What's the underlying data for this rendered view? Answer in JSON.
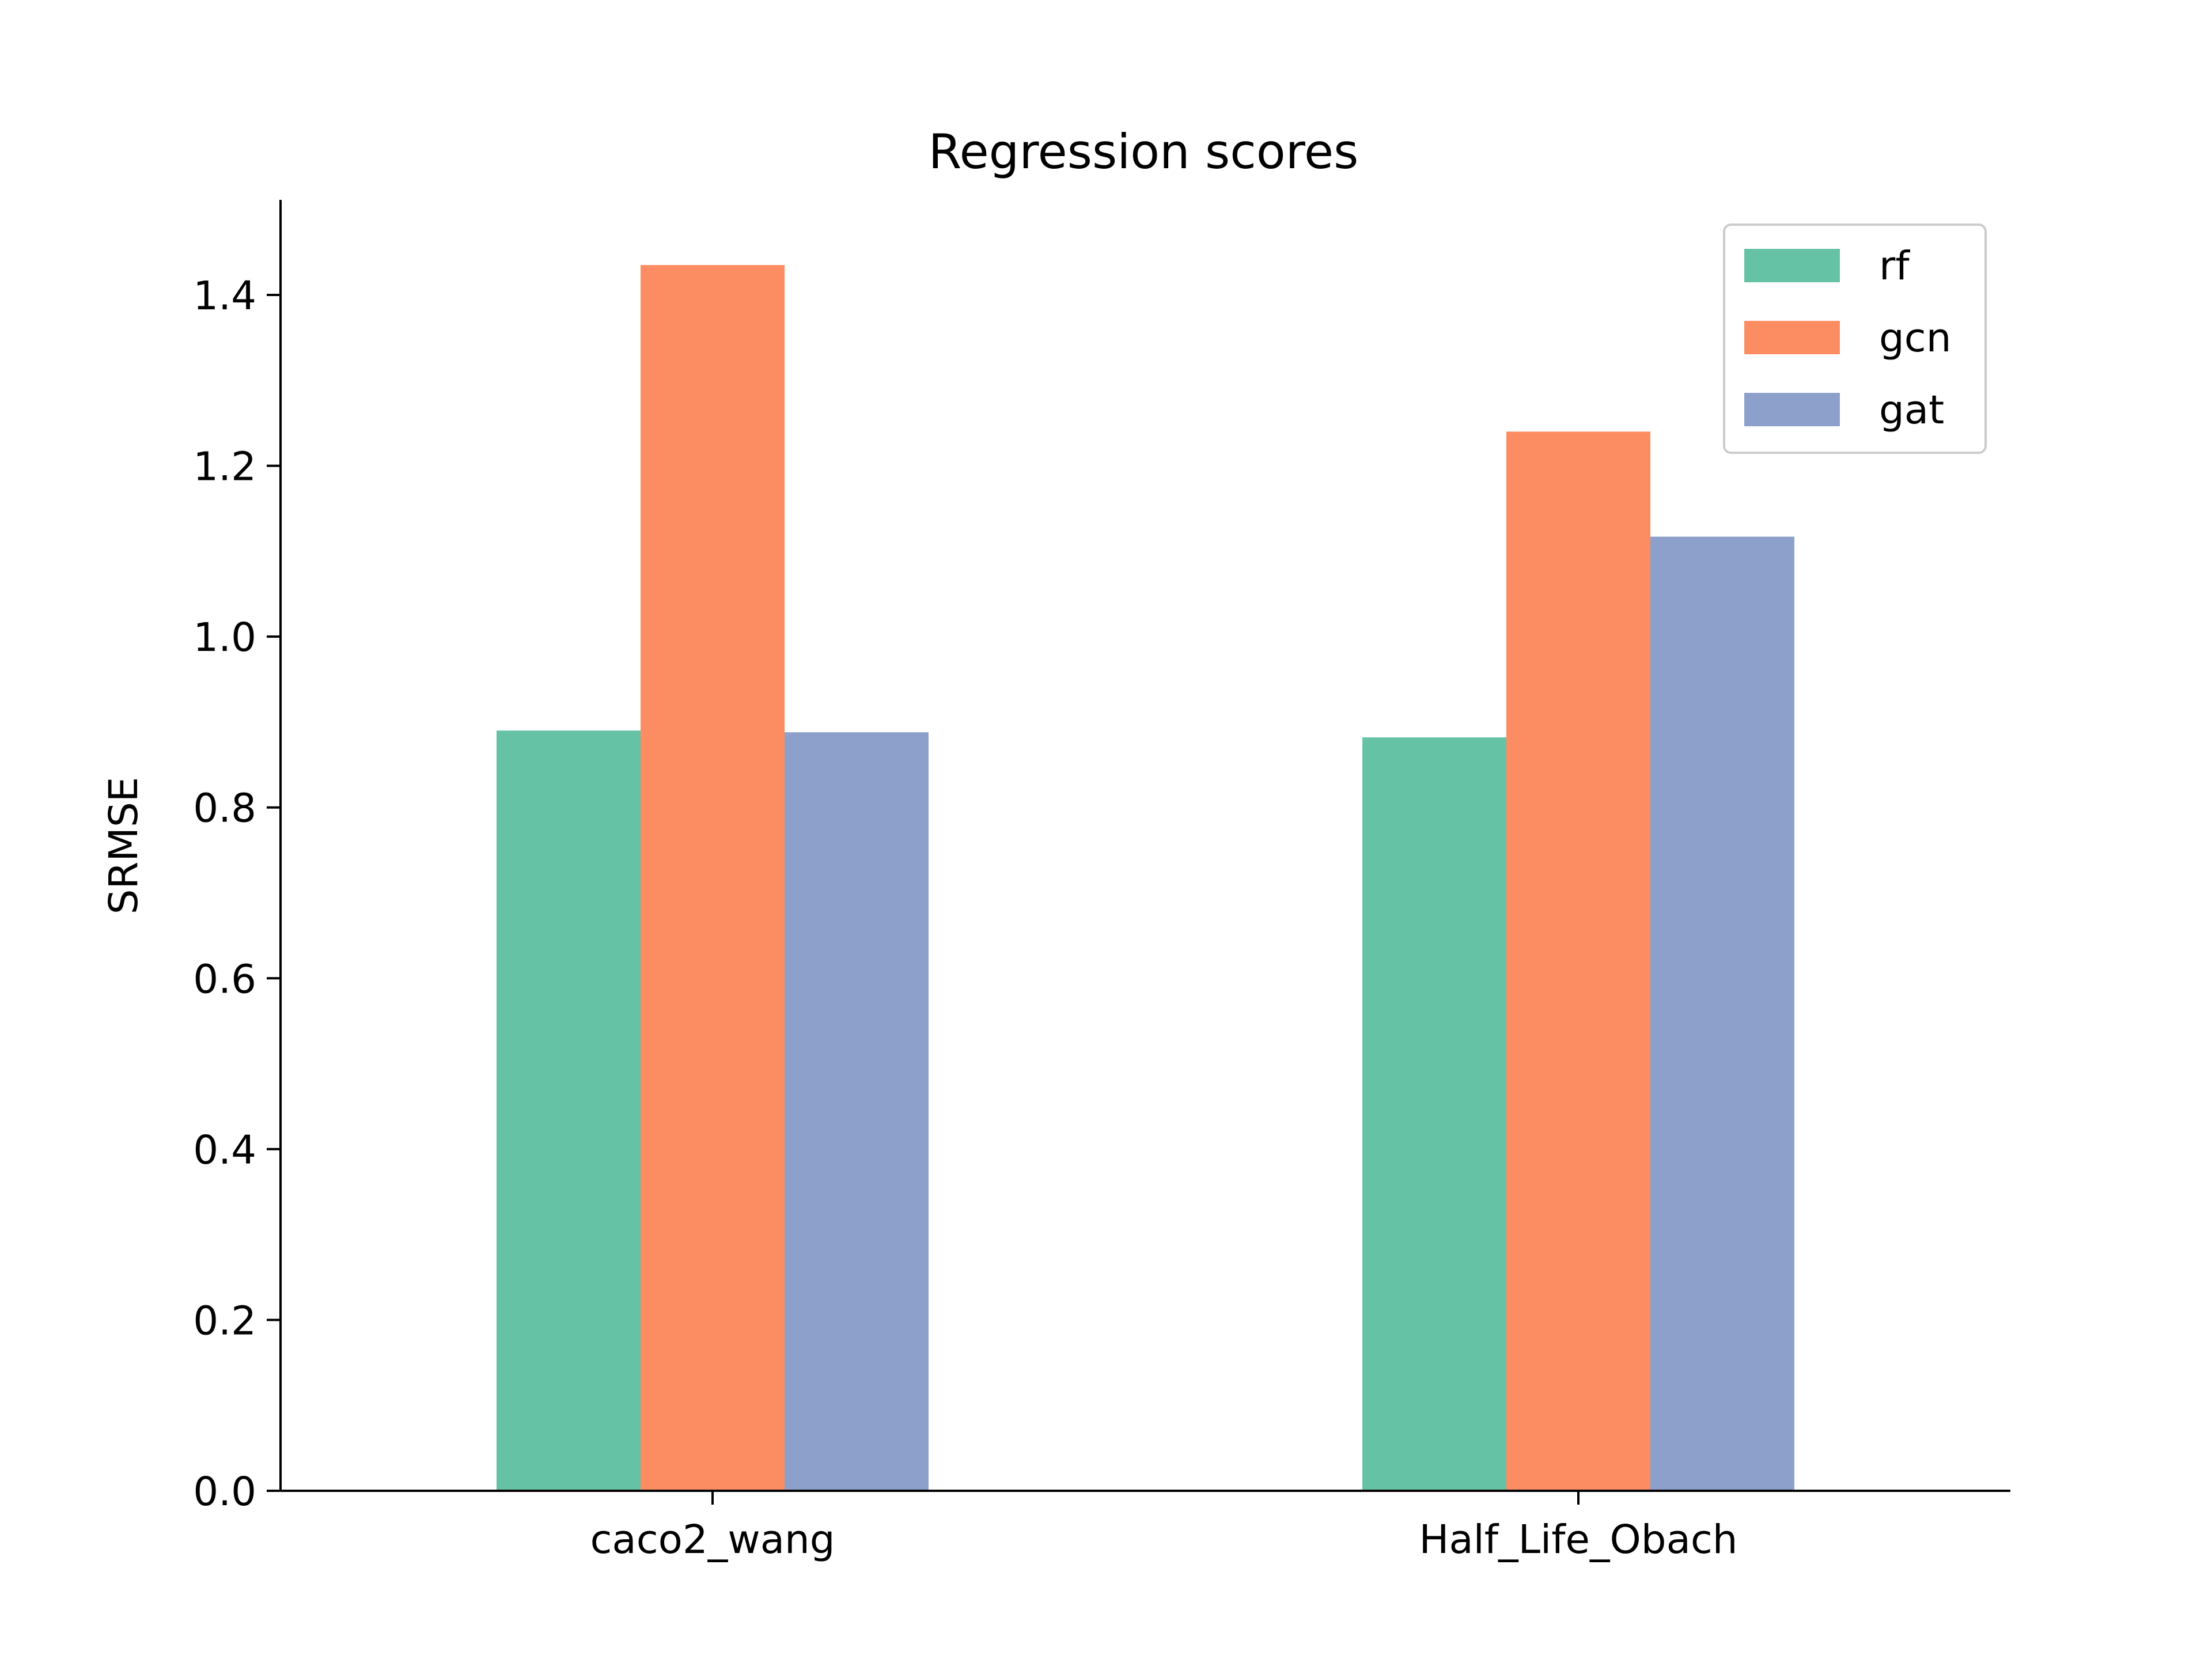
{
  "chart_data": {
    "type": "bar",
    "title": "Regression scores",
    "xlabel": "",
    "ylabel": "SRMSE",
    "categories": [
      "caco2_wang",
      "Half_Life_Obach"
    ],
    "series": [
      {
        "name": "rf",
        "color": "#66c2a5",
        "values": [
          0.89,
          0.882
        ]
      },
      {
        "name": "gcn",
        "color": "#fc8d62",
        "values": [
          1.435,
          1.24
        ]
      },
      {
        "name": "gat",
        "color": "#8da0cb",
        "values": [
          0.888,
          1.117
        ]
      }
    ],
    "ylim": [
      0,
      1.5
    ],
    "yticks": [
      "0.0",
      "0.2",
      "0.4",
      "0.6",
      "0.8",
      "1.0",
      "1.2",
      "1.4"
    ],
    "grid": false,
    "legend_position": "top-right"
  }
}
